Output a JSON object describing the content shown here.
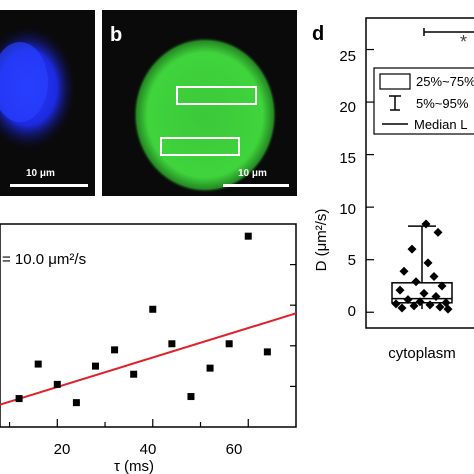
{
  "panels": {
    "a": {
      "scale_label": "10 μm",
      "color": "#1a2cff"
    },
    "b": {
      "letter": "b",
      "scale_label": "10 μm",
      "color": "#3fd23a"
    },
    "c": {
      "annotation": "= 10.0 μm²/s",
      "xlabel": "τ (ms)",
      "xticks": [
        "20",
        "40",
        "60"
      ],
      "fit_color": "#e0202a"
    },
    "d": {
      "letter": "d",
      "ylabel": "D (μm²/s)",
      "category": "cytoplasm",
      "yticks": [
        "0",
        "5",
        "10",
        "15",
        "20",
        "25"
      ],
      "legend": [
        "25%~75%",
        "5%~95%",
        "Median L"
      ],
      "significance": "*"
    }
  },
  "chart_data": [
    {
      "type": "scatter",
      "panel": "c",
      "xlabel": "τ (ms)",
      "xlim": [
        8,
        70
      ],
      "ylim": [
        0,
        10
      ],
      "points": [
        {
          "x": 12,
          "y": 1.4
        },
        {
          "x": 16,
          "y": 3.1
        },
        {
          "x": 20,
          "y": 2.1
        },
        {
          "x": 24,
          "y": 1.2
        },
        {
          "x": 28,
          "y": 3.0
        },
        {
          "x": 32,
          "y": 3.8
        },
        {
          "x": 36,
          "y": 2.6
        },
        {
          "x": 40,
          "y": 5.8
        },
        {
          "x": 44,
          "y": 4.1
        },
        {
          "x": 48,
          "y": 1.5
        },
        {
          "x": 52,
          "y": 2.9
        },
        {
          "x": 56,
          "y": 4.1
        },
        {
          "x": 60,
          "y": 9.4
        },
        {
          "x": 64,
          "y": 3.7
        }
      ],
      "fit": {
        "x": [
          8,
          70
        ],
        "y": [
          1.1,
          5.6
        ]
      }
    },
    {
      "type": "box",
      "panel": "d",
      "category": "cytoplasm",
      "ylim": [
        -1.5,
        28
      ],
      "q1": 0.9,
      "median": 1.3,
      "q3": 2.8,
      "whisker_low": 0.3,
      "whisker_high": 8.2,
      "points": [
        8.4,
        7.6,
        6.0,
        4.7,
        3.9,
        3.4,
        2.9,
        2.5,
        2.1,
        1.8,
        1.5,
        1.2,
        1.0,
        0.9,
        0.8,
        0.7,
        0.6,
        0.5,
        0.4,
        0.3
      ]
    }
  ]
}
